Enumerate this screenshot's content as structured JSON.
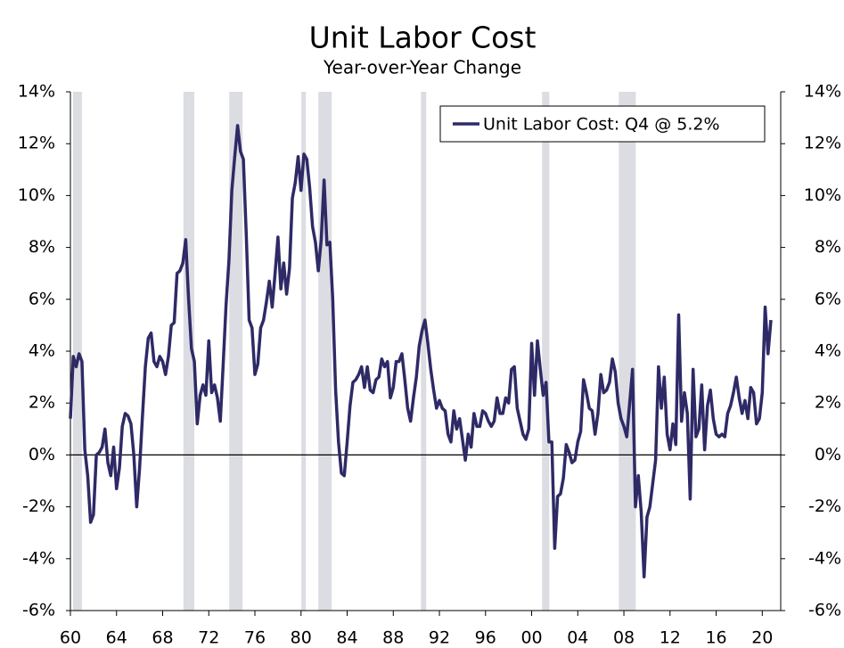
{
  "chart_data": {
    "type": "line",
    "title": "Unit Labor Cost",
    "subtitle": "Year-over-Year Change",
    "xlim": [
      1960,
      2021.6
    ],
    "ylim": [
      -6,
      14
    ],
    "y2lim": [
      -6,
      14
    ],
    "xticks": [
      {
        "value": 1960,
        "label": "60"
      },
      {
        "value": 1964,
        "label": "64"
      },
      {
        "value": 1968,
        "label": "68"
      },
      {
        "value": 1972,
        "label": "72"
      },
      {
        "value": 1976,
        "label": "76"
      },
      {
        "value": 1980,
        "label": "80"
      },
      {
        "value": 1984,
        "label": "84"
      },
      {
        "value": 1988,
        "label": "88"
      },
      {
        "value": 1992,
        "label": "92"
      },
      {
        "value": 1996,
        "label": "96"
      },
      {
        "value": 2000,
        "label": "00"
      },
      {
        "value": 2004,
        "label": "04"
      },
      {
        "value": 2008,
        "label": "08"
      },
      {
        "value": 2012,
        "label": "12"
      },
      {
        "value": 2016,
        "label": "16"
      },
      {
        "value": 2020,
        "label": "20"
      }
    ],
    "yticks": [
      {
        "value": -6,
        "label": "-6%"
      },
      {
        "value": -4,
        "label": "-4%"
      },
      {
        "value": -2,
        "label": "-2%"
      },
      {
        "value": 0,
        "label": "0%"
      },
      {
        "value": 2,
        "label": "2%"
      },
      {
        "value": 4,
        "label": "4%"
      },
      {
        "value": 6,
        "label": "6%"
      },
      {
        "value": 8,
        "label": "8%"
      },
      {
        "value": 10,
        "label": "10%"
      },
      {
        "value": 12,
        "label": "12%"
      },
      {
        "value": 14,
        "label": "14%"
      }
    ],
    "y2ticks": [
      {
        "value": -6,
        "label": "-6%"
      },
      {
        "value": -4,
        "label": "-4%"
      },
      {
        "value": -2,
        "label": "-2%"
      },
      {
        "value": 0,
        "label": "0%"
      },
      {
        "value": 2,
        "label": "2%"
      },
      {
        "value": 4,
        "label": "4%"
      },
      {
        "value": 6,
        "label": "6%"
      },
      {
        "value": 8,
        "label": "8%"
      },
      {
        "value": 10,
        "label": "10%"
      },
      {
        "value": 12,
        "label": "12%"
      },
      {
        "value": 14,
        "label": "14%"
      }
    ],
    "shaded_periods": [
      [
        1960.23,
        1961.0
      ],
      [
        1969.8,
        1970.75
      ],
      [
        1973.77,
        1974.93
      ],
      [
        1980.03,
        1980.42
      ],
      [
        1981.5,
        1982.66
      ],
      [
        1990.4,
        1990.86
      ],
      [
        2000.9,
        2001.53
      ],
      [
        2007.56,
        2009.03
      ]
    ],
    "shade_color": "#dcdce3",
    "legend": "upper right",
    "x": [
      1960,
      1960.25,
      1960.5,
      1960.75,
      1961,
      1961.25,
      1961.5,
      1961.75,
      1962,
      1962.25,
      1962.5,
      1962.75,
      1963,
      1963.25,
      1963.5,
      1963.75,
      1964,
      1964.25,
      1964.5,
      1964.75,
      1965,
      1965.25,
      1965.5,
      1965.75,
      1966,
      1966.25,
      1966.5,
      1966.75,
      1967,
      1967.25,
      1967.5,
      1967.75,
      1968,
      1968.25,
      1968.5,
      1968.75,
      1969,
      1969.25,
      1969.5,
      1969.75,
      1970,
      1970.25,
      1970.5,
      1970.75,
      1971,
      1971.25,
      1971.5,
      1971.75,
      1972,
      1972.25,
      1972.5,
      1972.75,
      1973,
      1973.25,
      1973.5,
      1973.75,
      1974,
      1974.25,
      1974.5,
      1974.75,
      1975,
      1975.25,
      1975.5,
      1975.75,
      1976,
      1976.25,
      1976.5,
      1976.75,
      1977,
      1977.25,
      1977.5,
      1977.75,
      1978,
      1978.25,
      1978.5,
      1978.75,
      1979,
      1979.25,
      1979.5,
      1979.75,
      1980,
      1980.25,
      1980.5,
      1980.75,
      1981,
      1981.25,
      1981.5,
      1981.75,
      1982,
      1982.25,
      1982.5,
      1982.75,
      1983,
      1983.25,
      1983.5,
      1983.75,
      1984,
      1984.25,
      1984.5,
      1984.75,
      1985,
      1985.25,
      1985.5,
      1985.75,
      1986,
      1986.25,
      1986.5,
      1986.75,
      1987,
      1987.25,
      1987.5,
      1987.75,
      1988,
      1988.25,
      1988.5,
      1988.75,
      1989,
      1989.25,
      1989.5,
      1989.75,
      1990,
      1990.25,
      1990.5,
      1990.75,
      1991,
      1991.25,
      1991.5,
      1991.75,
      1992,
      1992.25,
      1992.5,
      1992.75,
      1993,
      1993.25,
      1993.5,
      1993.75,
      1994,
      1994.25,
      1994.5,
      1994.75,
      1995,
      1995.25,
      1995.5,
      1995.75,
      1996,
      1996.25,
      1996.5,
      1996.75,
      1997,
      1997.25,
      1997.5,
      1997.75,
      1998,
      1998.25,
      1998.5,
      1998.75,
      1999,
      1999.25,
      1999.5,
      1999.75,
      2000,
      2000.25,
      2000.5,
      2000.75,
      2001,
      2001.25,
      2001.5,
      2001.75,
      2002,
      2002.25,
      2002.5,
      2002.75,
      2003,
      2003.25,
      2003.5,
      2003.75,
      2004,
      2004.25,
      2004.5,
      2004.75,
      2005,
      2005.25,
      2005.5,
      2005.75,
      2006,
      2006.25,
      2006.5,
      2006.75,
      2007,
      2007.25,
      2007.5,
      2007.75,
      2008,
      2008.25,
      2008.5,
      2008.75,
      2009,
      2009.25,
      2009.5,
      2009.75,
      2010,
      2010.25,
      2010.5,
      2010.75,
      2011,
      2011.25,
      2011.5,
      2011.75,
      2012,
      2012.25,
      2012.5,
      2012.75,
      2013,
      2013.25,
      2013.5,
      2013.75,
      2014,
      2014.25,
      2014.5,
      2014.75,
      2015,
      2015.25,
      2015.5,
      2015.75,
      2016,
      2016.25,
      2016.5,
      2016.75,
      2017,
      2017.25,
      2017.5,
      2017.75,
      2018,
      2018.25,
      2018.5,
      2018.75,
      2019,
      2019.25,
      2019.5,
      2019.75,
      2020,
      2020.25,
      2020.5,
      2020.75
    ],
    "series": [
      {
        "name": "Unit Labor Cost: Q4 @ 5.2%",
        "color": "#2e2a66",
        "values": [
          1.4,
          3.8,
          3.4,
          3.9,
          3.6,
          0.2,
          -0.8,
          -2.6,
          -2.3,
          0.0,
          0.1,
          0.3,
          1.0,
          -0.3,
          -0.8,
          0.3,
          -1.3,
          -0.5,
          1.1,
          1.6,
          1.5,
          1.2,
          0.0,
          -2.0,
          -0.5,
          1.5,
          3.4,
          4.5,
          4.7,
          3.6,
          3.4,
          3.8,
          3.6,
          3.1,
          3.8,
          5.0,
          5.1,
          7.0,
          7.1,
          7.4,
          8.3,
          6.0,
          4.1,
          3.6,
          1.2,
          2.3,
          2.7,
          2.3,
          4.4,
          2.4,
          2.7,
          2.2,
          1.3,
          3.5,
          5.8,
          7.5,
          10.2,
          11.5,
          12.7,
          11.7,
          11.4,
          8.5,
          5.2,
          4.9,
          3.1,
          3.5,
          4.9,
          5.2,
          5.9,
          6.7,
          5.7,
          7.0,
          8.4,
          6.4,
          7.4,
          6.2,
          7.2,
          9.9,
          10.5,
          11.5,
          10.2,
          11.6,
          11.4,
          10.3,
          8.8,
          8.2,
          7.1,
          8.3,
          10.6,
          8.1,
          8.2,
          6.0,
          2.5,
          0.5,
          -0.7,
          -0.8,
          0.5,
          1.9,
          2.8,
          2.9,
          3.1,
          3.4,
          2.6,
          3.4,
          2.5,
          2.4,
          2.9,
          3.0,
          3.7,
          3.4,
          3.6,
          2.2,
          2.6,
          3.6,
          3.6,
          3.9,
          2.9,
          1.8,
          1.3,
          2.2,
          3.0,
          4.2,
          4.8,
          5.2,
          4.3,
          3.3,
          2.5,
          1.8,
          2.1,
          1.8,
          1.7,
          0.8,
          0.5,
          1.7,
          1.0,
          1.4,
          0.6,
          -0.2,
          0.8,
          0.3,
          1.6,
          1.1,
          1.1,
          1.7,
          1.6,
          1.3,
          1.1,
          1.3,
          2.2,
          1.6,
          1.6,
          2.2,
          2.0,
          3.3,
          3.4,
          1.8,
          1.3,
          0.8,
          0.6,
          1.0,
          4.3,
          2.3,
          4.4,
          3.3,
          2.3,
          2.8,
          0.5,
          0.5,
          -3.6,
          -1.6,
          -1.5,
          -0.9,
          0.4,
          0.1,
          -0.3,
          -0.2,
          0.5,
          0.9,
          2.9,
          2.4,
          1.8,
          1.7,
          0.8,
          1.6,
          3.1,
          2.4,
          2.5,
          2.8,
          3.7,
          3.2,
          2.0,
          1.4,
          1.1,
          0.7,
          2.0,
          3.3,
          -2.0,
          -0.8,
          -2.2,
          -4.7,
          -2.4,
          -2.0,
          -1.1,
          -0.2,
          3.4,
          1.8,
          3.0,
          0.8,
          0.2,
          1.2,
          0.4,
          5.4,
          1.3,
          2.4,
          1.6,
          -1.7,
          3.3,
          0.7,
          1.0,
          2.7,
          0.2,
          1.9,
          2.5,
          1.4,
          0.8,
          0.7,
          0.8,
          0.7,
          1.6,
          1.9,
          2.4,
          3.0,
          2.2,
          1.6,
          2.1,
          1.4,
          2.6,
          2.4,
          1.2,
          1.4,
          2.4,
          5.7,
          3.9,
          5.2
        ]
      }
    ]
  }
}
